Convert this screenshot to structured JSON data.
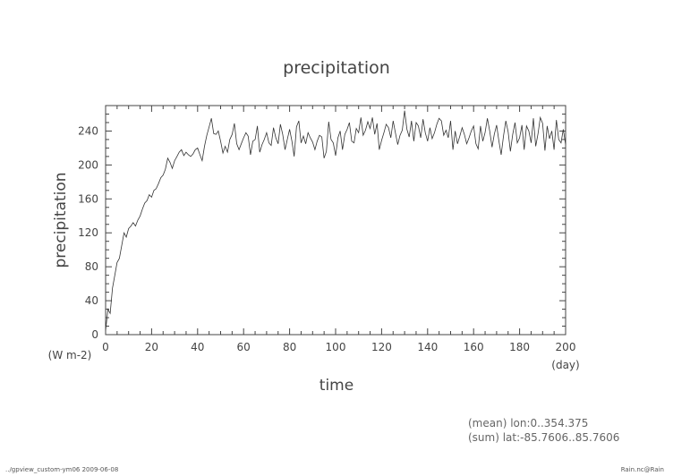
{
  "chart_data": {
    "type": "line",
    "title": "precipitation",
    "xlabel": "time",
    "x_unit": "(day)",
    "ylabel": "precipitation",
    "y_unit": "(W m-2)",
    "xlim": [
      0,
      200
    ],
    "ylim": [
      0,
      270
    ],
    "xticks": [
      0,
      20,
      40,
      60,
      80,
      100,
      120,
      140,
      160,
      180,
      200
    ],
    "yticks": [
      0,
      40,
      80,
      120,
      160,
      200,
      240
    ],
    "grid": false,
    "annotations": [
      "(mean) lon:0..354.375",
      "(sum) lat:-85.7606..85.7606"
    ],
    "series": [
      {
        "x": [
          0,
          1,
          2,
          3,
          4,
          5,
          6,
          7,
          8,
          9,
          10,
          11,
          12,
          13,
          14,
          15,
          16,
          17,
          18,
          19,
          20,
          21,
          22,
          23,
          24,
          25,
          26,
          27,
          28,
          29,
          30,
          31,
          32,
          33,
          34,
          35,
          36,
          37,
          38,
          39,
          40,
          41,
          42,
          43,
          44,
          45,
          46,
          47,
          48,
          49,
          50,
          51,
          52,
          53,
          54,
          55,
          56,
          57,
          58,
          59,
          60,
          61,
          62,
          63,
          64,
          65,
          66,
          67,
          68,
          69,
          70,
          71,
          72,
          73,
          74,
          75,
          76,
          77,
          78,
          79,
          80,
          81,
          82,
          83,
          84,
          85,
          86,
          87,
          88,
          89,
          90,
          91,
          92,
          93,
          94,
          95,
          96,
          97,
          98,
          99,
          100,
          101,
          102,
          103,
          104,
          105,
          106,
          107,
          108,
          109,
          110,
          111,
          112,
          113,
          114,
          115,
          116,
          117,
          118,
          119,
          120,
          121,
          122,
          123,
          124,
          125,
          126,
          127,
          128,
          129,
          130,
          131,
          132,
          133,
          134,
          135,
          136,
          137,
          138,
          139,
          140,
          141,
          142,
          143,
          144,
          145,
          146,
          147,
          148,
          149,
          150,
          151,
          152,
          153,
          154,
          155,
          156,
          157,
          158,
          159,
          160,
          161,
          162,
          163,
          164,
          165,
          166,
          167,
          168,
          169,
          170,
          171,
          172,
          173,
          174,
          175,
          176,
          177,
          178,
          179,
          180,
          181,
          182,
          183,
          184,
          185,
          186,
          187,
          188,
          189,
          190,
          191,
          192,
          193,
          194,
          195,
          196,
          197,
          198,
          199,
          200
        ],
        "y": [
          5,
          30,
          25,
          55,
          70,
          85,
          90,
          105,
          120,
          115,
          125,
          128,
          132,
          128,
          135,
          140,
          148,
          155,
          158,
          165,
          162,
          170,
          172,
          178,
          185,
          188,
          195,
          208,
          203,
          196,
          205,
          210,
          215,
          218,
          211,
          215,
          212,
          210,
          213,
          218,
          220,
          212,
          205,
          222,
          235,
          245,
          255,
          237,
          236,
          240,
          228,
          214,
          222,
          215,
          230,
          236,
          249,
          225,
          218,
          225,
          232,
          238,
          234,
          212,
          228,
          230,
          246,
          215,
          224,
          230,
          238,
          226,
          223,
          244,
          232,
          225,
          248,
          236,
          218,
          230,
          242,
          228,
          210,
          245,
          252,
          226,
          234,
          225,
          238,
          232,
          227,
          218,
          228,
          235,
          233,
          208,
          216,
          251,
          230,
          226,
          211,
          232,
          240,
          218,
          236,
          242,
          250,
          228,
          226,
          243,
          238,
          256,
          235,
          241,
          251,
          243,
          256,
          236,
          249,
          218,
          229,
          238,
          248,
          244,
          232,
          252,
          238,
          224,
          235,
          241,
          264,
          242,
          233,
          252,
          228,
          250,
          246,
          232,
          254,
          238,
          228,
          244,
          231,
          238,
          248,
          255,
          252,
          235,
          241,
          232,
          252,
          218,
          240,
          225,
          234,
          244,
          236,
          225,
          232,
          240,
          246,
          225,
          219,
          246,
          228,
          238,
          255,
          240,
          221,
          236,
          247,
          228,
          212,
          234,
          252,
          239,
          216,
          236,
          250,
          226,
          232,
          247,
          218,
          246,
          240,
          226,
          255,
          222,
          237,
          256,
          249,
          217,
          246,
          231,
          240,
          218,
          253,
          230,
          226,
          242,
          224
        ]
      }
    ]
  },
  "footer": {
    "left": "../gpview_custom-ym06  2009-06-08",
    "right": "Rain.nc@Rain"
  }
}
